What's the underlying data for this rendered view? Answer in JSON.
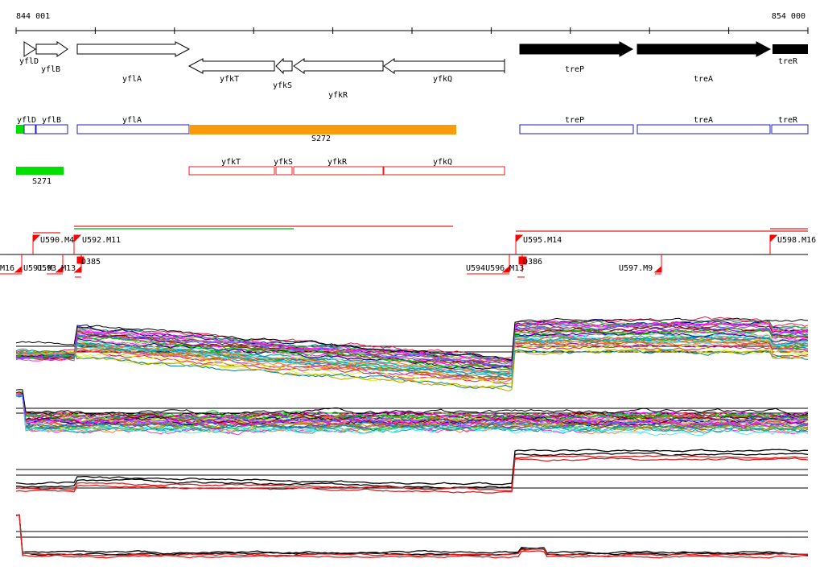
{
  "coordinates": {
    "start": "844 001",
    "end": "854 000"
  },
  "genes": {
    "yflD": "yflD",
    "yflB": "yflB",
    "yflA": "yflA",
    "yfkT": "yfkT",
    "yfkS": "yfkS",
    "yfkR": "yfkR",
    "yfkQ": "yfkQ",
    "treP": "treP",
    "treA": "treA",
    "treR": "treR"
  },
  "segments": {
    "s272": "S272",
    "s271": "S271"
  },
  "markers": {
    "u590_m4": "U590.M4",
    "u592_m11": "U592.M11",
    "u595_m14": "U595.M14",
    "u598_m16": "U598.M16",
    "m16": "M16",
    "u591_cluster": "U591.M",
    "u593_cluster": "U593.M13",
    "d385": "D385",
    "u594_cluster": "U594U596.M13",
    "d386": "D386",
    "u597_m9": "U597.M9"
  },
  "colors": {
    "operon_fill": "#f89c0e",
    "segment_fill": "#00e000",
    "forward_gene": "#1c1cb8",
    "reverse_gene": "#e02020",
    "marker": "#ff0000",
    "dark_gene": "#000000"
  }
}
